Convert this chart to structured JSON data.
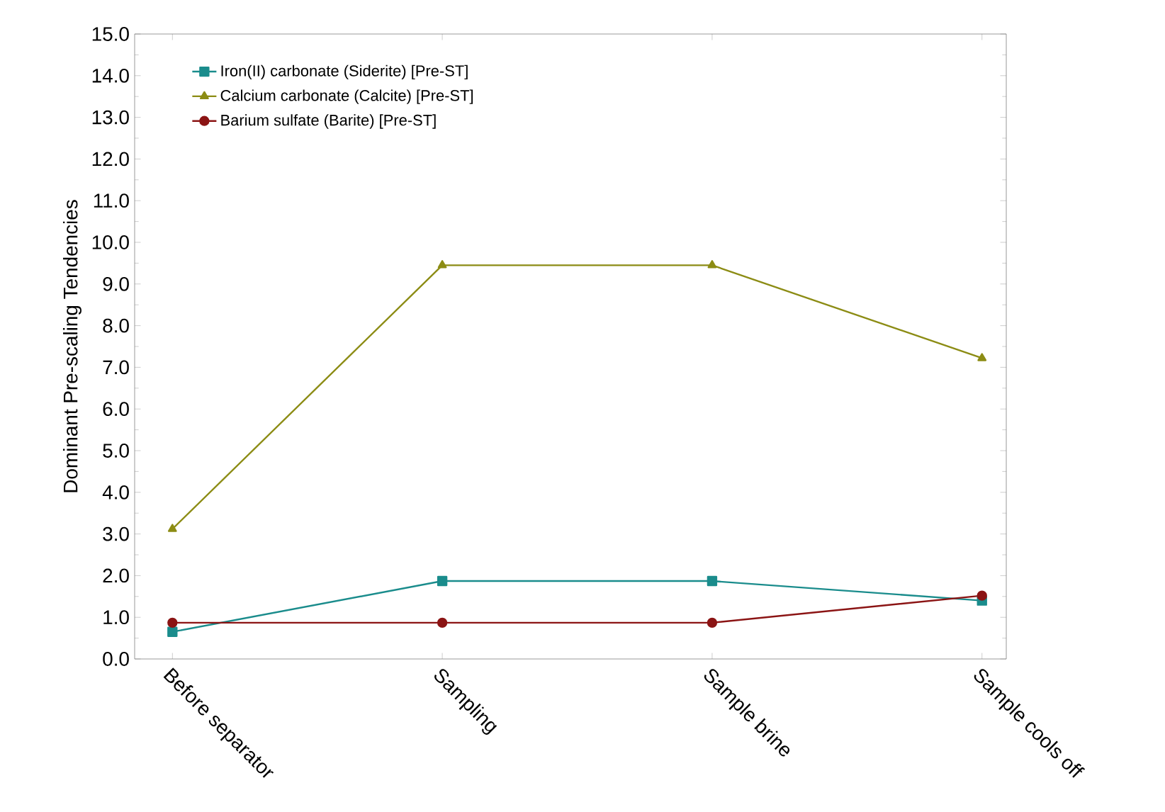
{
  "chart_data": {
    "type": "line",
    "ylabel": "Dominant Pre-scaling Tendencies",
    "categories": [
      "Before separator",
      "Sampling",
      "Sample brine",
      "Sample cools off"
    ],
    "series": [
      {
        "name": "Iron(II) carbonate (Siderite) [Pre-ST]",
        "color": "#1a8c8c",
        "marker": "square",
        "values": [
          0.65,
          1.87,
          1.87,
          1.4
        ]
      },
      {
        "name": "Calcium carbonate (Calcite) [Pre-ST]",
        "color": "#8c8c14",
        "marker": "triangle",
        "values": [
          3.12,
          9.45,
          9.45,
          7.22
        ]
      },
      {
        "name": "Barium sulfate (Barite) [Pre-ST]",
        "color": "#8b1414",
        "marker": "circle",
        "values": [
          0.87,
          0.87,
          0.87,
          1.52
        ]
      }
    ],
    "ylim": [
      0,
      15
    ],
    "yticks": [
      {
        "value": 0,
        "label": "0.0"
      },
      {
        "value": 1,
        "label": "1.0"
      },
      {
        "value": 2,
        "label": "2.0"
      },
      {
        "value": 3,
        "label": "3.0"
      },
      {
        "value": 4,
        "label": "4.0"
      },
      {
        "value": 5,
        "label": "5.0"
      },
      {
        "value": 6,
        "label": "6.0"
      },
      {
        "value": 7,
        "label": "7.0"
      },
      {
        "value": 8,
        "label": "8.0"
      },
      {
        "value": 9,
        "label": "9.0"
      },
      {
        "value": 10,
        "label": "10.0"
      },
      {
        "value": 11,
        "label": "11.0"
      },
      {
        "value": 12,
        "label": "12.0"
      },
      {
        "value": 13,
        "label": "13.0"
      },
      {
        "value": 14,
        "label": "14.0"
      },
      {
        "value": 15,
        "label": "15.0"
      }
    ],
    "legend": "top left",
    "grid": false
  }
}
